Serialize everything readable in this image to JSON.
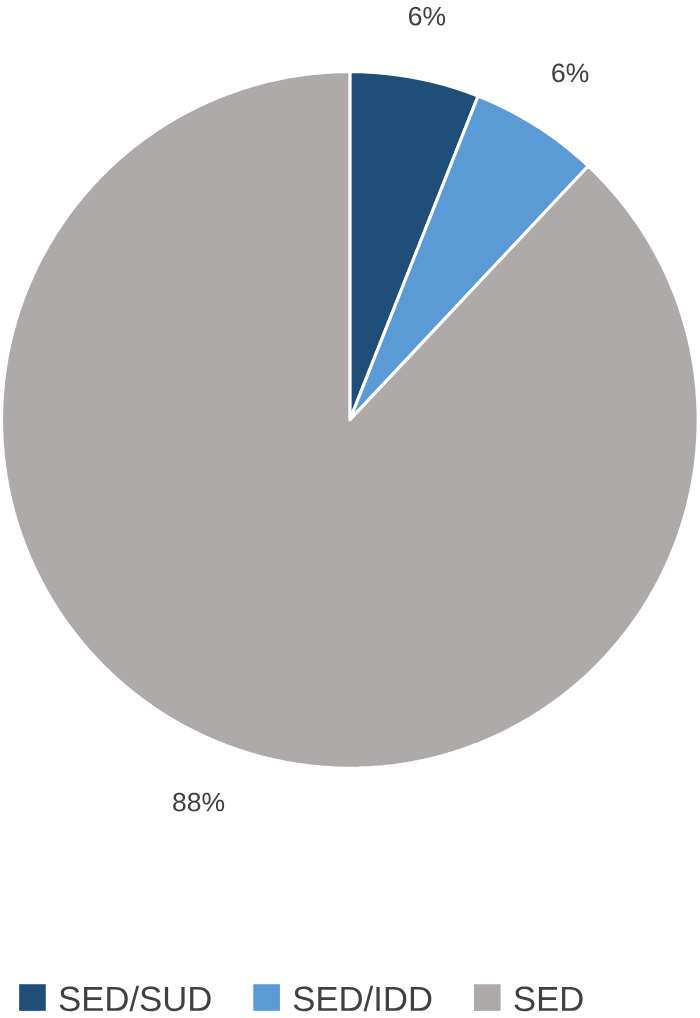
{
  "chart_data": {
    "type": "pie",
    "categories": [
      "SED/SUD",
      "SED/IDD",
      "SED"
    ],
    "values": [
      6,
      6,
      88
    ],
    "colors": [
      "#1f4e79",
      "#5b9bd5",
      "#aeaaaa"
    ],
    "value_labels": [
      "6%",
      "6%",
      "88%"
    ],
    "legend": "bottom"
  }
}
